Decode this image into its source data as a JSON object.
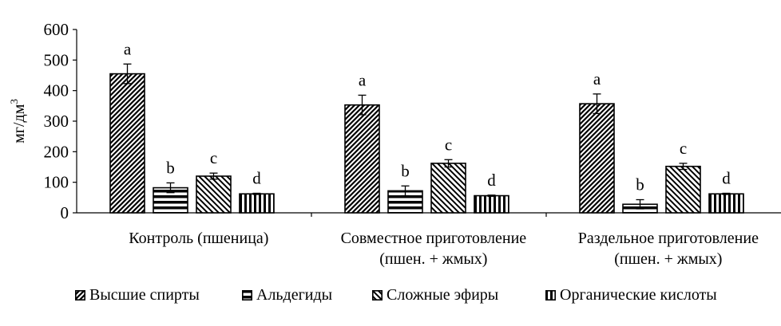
{
  "chart_data": {
    "type": "bar",
    "title": "",
    "xlabel": "",
    "ylabel": "мг/дм",
    "ylabel_superscript": "3",
    "ylim": [
      0,
      600
    ],
    "yticks": [
      0,
      100,
      200,
      300,
      400,
      500,
      600
    ],
    "grid": false,
    "legend_position": "bottom",
    "categories": [
      [
        "Контроль (пшеница)"
      ],
      [
        "Совместное приготовление",
        "(пшен. + жмых)"
      ],
      [
        "Раздельное приготовление",
        "(пшен. + жмых)"
      ]
    ],
    "series": [
      {
        "name": "Высшие спирты",
        "pattern": "diagonal-forward",
        "values": [
          455,
          353,
          357
        ],
        "errors": [
          32,
          32,
          32
        ],
        "labels": [
          "a",
          "a",
          "a"
        ]
      },
      {
        "name": "Альдегиды",
        "pattern": "horizontal",
        "values": [
          82,
          72,
          28
        ],
        "errors": [
          16,
          16,
          15
        ],
        "labels": [
          "b",
          "b",
          "b"
        ]
      },
      {
        "name": "Сложные эфиры",
        "pattern": "diagonal-backward",
        "values": [
          120,
          162,
          152
        ],
        "errors": [
          10,
          12,
          10
        ],
        "labels": [
          "c",
          "c",
          "c"
        ]
      },
      {
        "name": "Органические кислоты",
        "pattern": "vertical",
        "values": [
          62,
          56,
          62
        ],
        "errors": [
          2,
          2,
          2
        ],
        "labels": [
          "d",
          "d",
          "d"
        ]
      }
    ]
  }
}
